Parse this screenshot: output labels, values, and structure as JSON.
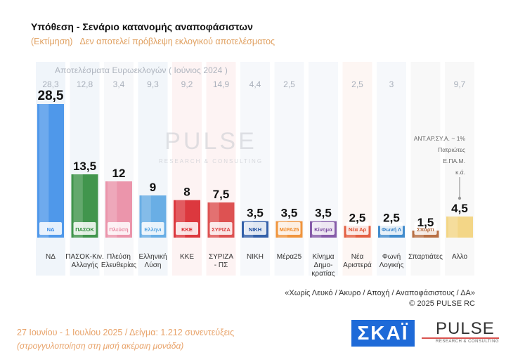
{
  "header": {
    "title": "Υπόθεση - Σενάριο κατανομής αναποφάσιστων",
    "subtitle_left": "(Εκτίμηση)",
    "subtitle_right": "Δεν αποτελεί πρόβλεψη εκλογικού αποτελέσματος"
  },
  "euro_label": "Αποτελέσματα Ευρωεκλογών  ( Ιούνιος 2024 )",
  "watermark": {
    "title": "PULSE",
    "subtitle": "RESEARCH & CONSULTING"
  },
  "annotation": [
    "ΑΝΤ.ΑΡ.ΣΥ.Α. ~ 1%",
    "Πατριώτες",
    "Ε.ΠΑ.Μ.",
    "κ.ά."
  ],
  "note_lines": [
    "«Χωρίς Λευκό / Άκυρο / Αποχή / Αναποφάσιστους / ΔΑ»",
    "©  2025  PULSE RC"
  ],
  "footer": {
    "date_line": "27 Ιουνίου - 1 Ιουλίου 2025  /  Δείγμα:  1.212 συνεντεύξεις",
    "rounding_line": "(στρογγυλοποίηση στη μισή ακέραιη μονάδα)"
  },
  "logos": {
    "skai": "ΣΚΑΪ",
    "pulse": "PULSE",
    "pulse_sub": "RESEARCH & CONSULTING"
  },
  "chart_data": {
    "type": "bar",
    "title": "Υπόθεση - Σενάριο κατανομής αναποφάσιστων",
    "categories": [
      "ΝΔ",
      "ΠΑΣΟΚ-Κιν. Αλλαγής",
      "Πλεύση Ελευθερίας",
      "Ελληνική Λύση",
      "ΚΚΕ",
      "ΣΥΡΙΖΑ - ΠΣ",
      "ΝΙΚΗ",
      "Μέρα25",
      "Κίνημα Δημοκρατίας",
      "Νέα Αριστερά",
      "Φωνή Λογικής",
      "Σπαρτιάτες",
      "Αλλο"
    ],
    "category_lines": [
      [
        "ΝΔ"
      ],
      [
        "ΠΑΣΟΚ-Κιν.",
        "Αλλαγής"
      ],
      [
        "Πλεύση",
        "Ελευθερίας"
      ],
      [
        "Ελληνική",
        "Λύση"
      ],
      [
        "ΚΚΕ"
      ],
      [
        "ΣΥΡΙΖΑ",
        "- ΠΣ"
      ],
      [
        "ΝΙΚΗ"
      ],
      [
        "Μέρα25"
      ],
      [
        "Κίνημα",
        "Δημο-",
        "κρατίας"
      ],
      [
        "Νέα",
        "Αριστερά"
      ],
      [
        "Φωνή",
        "Λογικής"
      ],
      [
        "Σπαρτιάτες"
      ],
      [
        "Αλλο"
      ]
    ],
    "series": [
      {
        "name": "Εκτίμηση",
        "values": [
          28.5,
          13.5,
          12,
          9,
          8,
          7.5,
          3.5,
          3.5,
          3.5,
          2.5,
          2.5,
          1.5,
          4.5
        ]
      },
      {
        "name": "Αποτελέσματα Ευρωεκλογών ( Ιούνιος 2024 )",
        "values": [
          28.3,
          12.8,
          3.4,
          9.3,
          9.2,
          14.9,
          4.4,
          2.5,
          null,
          2.5,
          3,
          null,
          9.7
        ]
      }
    ],
    "value_labels": [
      "28,5",
      "13,5",
      "12",
      "9",
      "8",
      "7,5",
      "3,5",
      "3,5",
      "3,5",
      "2,5",
      "2,5",
      "1,5",
      "4,5"
    ],
    "euro_labels": [
      "28,3",
      "12,8",
      "3,4",
      "9,3",
      "9,2",
      "14,9",
      "4,4",
      "2,5",
      "",
      "2,5",
      "3",
      "",
      "9,7"
    ],
    "party_logos": [
      "ΝΔ",
      "ΠΑΣΟΚ",
      "Πλεύση",
      "Ελληνική Λύση",
      "ΚΚΕ",
      "ΣΥΡΙΖΑ",
      "ΝΙΚΗ",
      "ΜέΡΑ25",
      "Κίνημα Δημοκρατίας",
      "Νέα Αριστερά",
      "Φωνή Λογικής",
      "Σπαρτιάτες",
      ""
    ],
    "colors": [
      "#3d8ee8",
      "#2e8b3a",
      "#e98aa2",
      "#5aa6e2",
      "#d8232a",
      "#d94040",
      "#1f4fa0",
      "#f08a28",
      "#7a4aa0",
      "#e05030",
      "#2f7fc8",
      "#b06030",
      "#f2d27a"
    ],
    "bg_colors": [
      "#e4ecf6",
      "#e8eef6",
      "#f0f2f6",
      "#e8eef6",
      "#fbeaea",
      "#fbeaea",
      "#eef2f8",
      "#eef2f8",
      "#eef2f8",
      "#fbeeea",
      "#eef2f8",
      "#f2f2f2",
      "#f2f2f2"
    ],
    "ylim": [
      0,
      30
    ],
    "legend": "none",
    "grid": false
  }
}
